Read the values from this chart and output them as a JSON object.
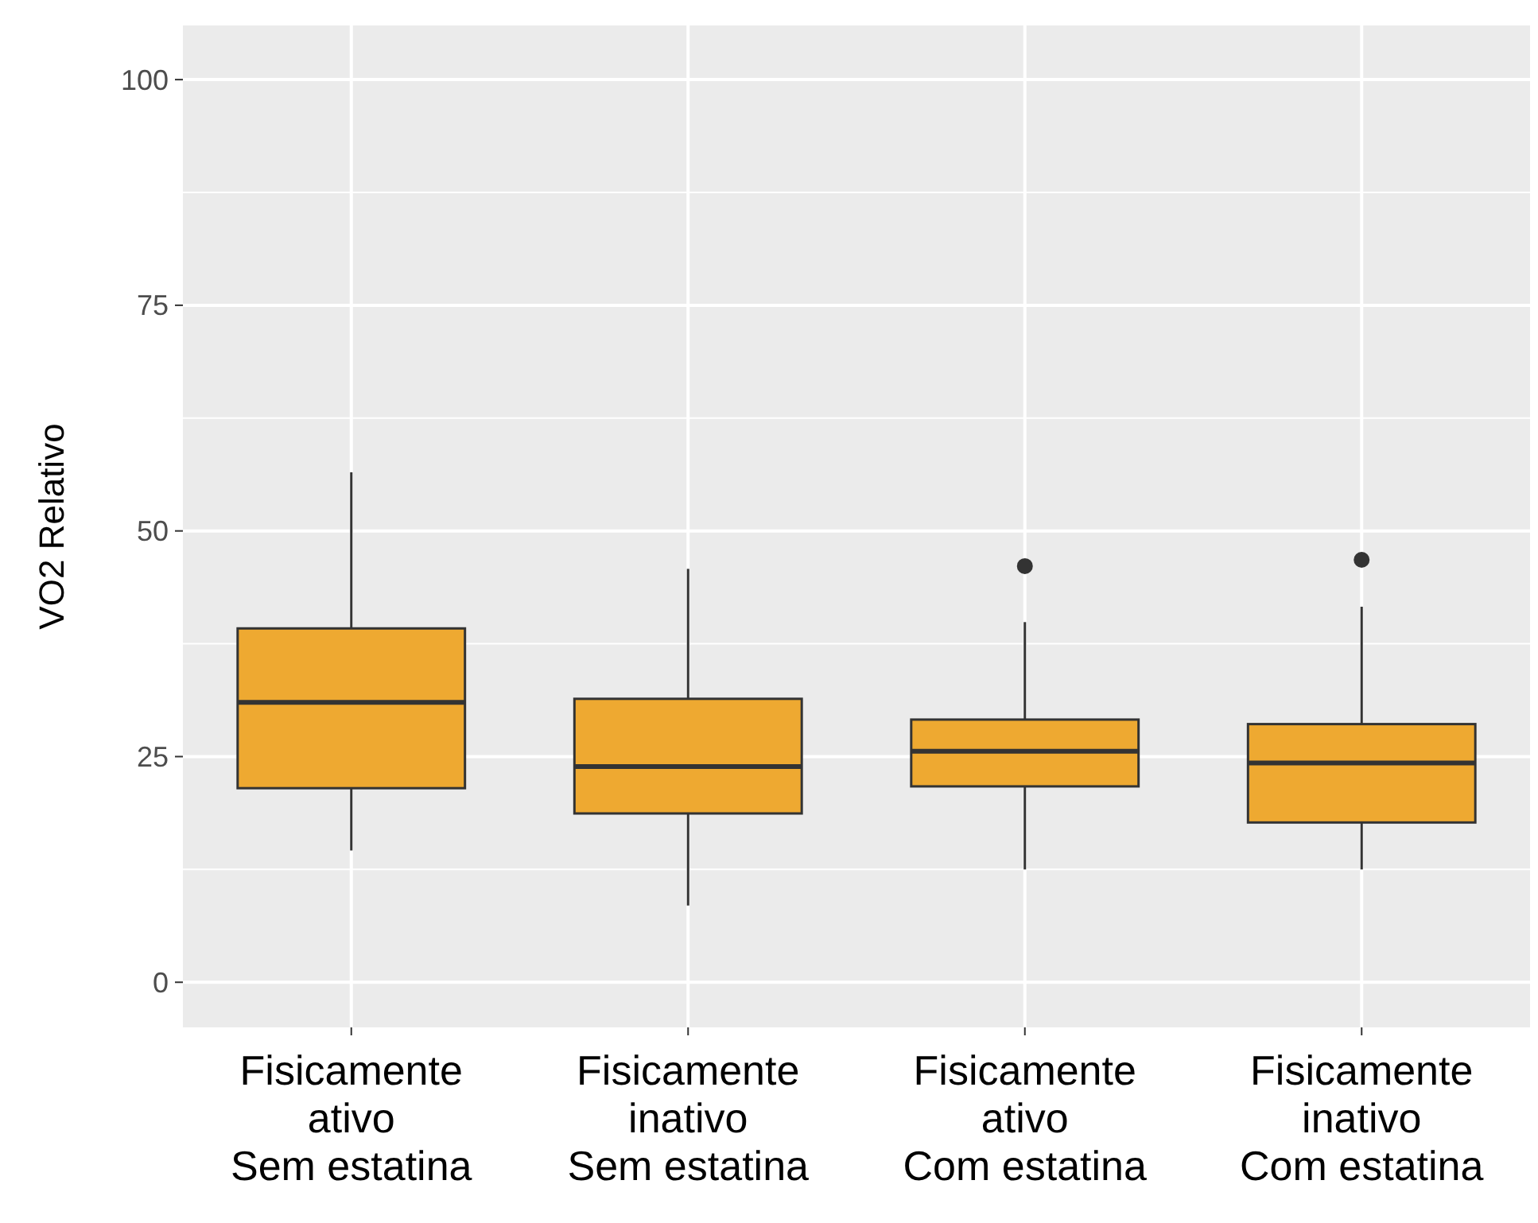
{
  "chart_data": {
    "type": "box",
    "ylabel": "VO2 Relativo",
    "categories": [
      "Fisicamente\nativo\nSem estatina",
      "Fisicamente\ninativo\nSem estatina",
      "Fisicamente\nativo\nCom estatina",
      "Fisicamente\ninativo\nCom estatina"
    ],
    "boxes": [
      {
        "low": 14.6,
        "q1": 21.5,
        "median": 31,
        "q3": 39.2,
        "high": 56.5
      },
      {
        "low": 8.5,
        "q1": 18.7,
        "median": 23.9,
        "q3": 31.4,
        "high": 45.8
      },
      {
        "low": 12.5,
        "q1": 21.7,
        "median": 25.6,
        "q3": 29.1,
        "high": 39.9,
        "outliers": [
          46.1
        ]
      },
      {
        "low": 12.5,
        "q1": 17.7,
        "median": 24.3,
        "q3": 28.6,
        "high": 41.6,
        "outliers": [
          46.8
        ]
      }
    ],
    "color": "#eea931",
    "ylim": [
      -5,
      106
    ],
    "yticks": [
      0,
      25,
      50,
      75,
      100
    ],
    "grid": true
  }
}
